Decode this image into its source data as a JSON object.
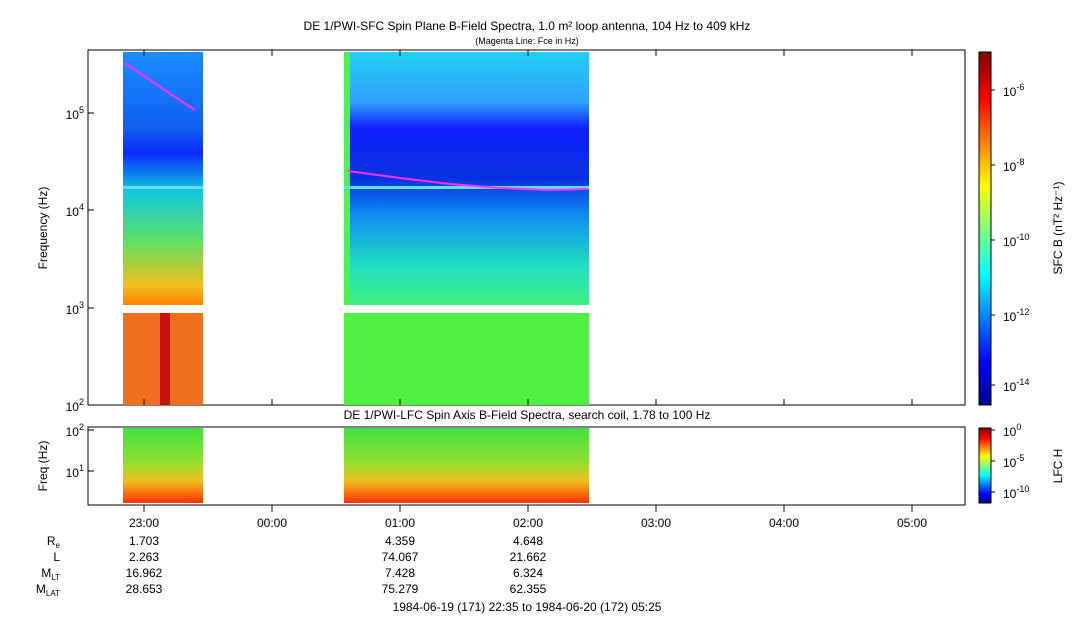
{
  "title": "DE 1/PWI-SFC  Spin Plane B-Field Spectra, 1.0 m² loop antenna, 104 Hz to 409 kHz",
  "subtitle": "(Magenta Line: Fce in Hz)",
  "upper_panel": {
    "y_label": "Frequency (Hz)",
    "y_ticks": [
      {
        "base": "10",
        "exp": "2"
      },
      {
        "base": "10",
        "exp": "3"
      },
      {
        "base": "10",
        "exp": "4"
      },
      {
        "base": "10",
        "exp": "5"
      }
    ],
    "colorbar_label": "SFC B (nT² Hz⁻¹)",
    "colorbar_ticks": [
      {
        "base": "10",
        "exp": "-6"
      },
      {
        "base": "10",
        "exp": "-8"
      },
      {
        "base": "10",
        "exp": "-10"
      },
      {
        "base": "10",
        "exp": "-12"
      },
      {
        "base": "10",
        "exp": "-14"
      }
    ]
  },
  "lower_panel": {
    "title": "DE 1/PWI-LFC  Spin Axis B-Field Spectra, search coil, 1.78 to 100 Hz",
    "y_label": "Freq (Hz)",
    "y_ticks": [
      {
        "base": "10",
        "exp": "2"
      },
      {
        "base": "10",
        "exp": "1"
      }
    ],
    "colorbar_label": "LFC H",
    "colorbar_ticks": [
      {
        "base": "10",
        "exp": "0"
      },
      {
        "base": "10",
        "exp": "-5"
      },
      {
        "base": "10",
        "exp": "-10"
      }
    ]
  },
  "x_ticks": [
    "23:00",
    "00:00",
    "01:00",
    "02:00",
    "03:00",
    "04:00",
    "05:00"
  ],
  "ephemeris": {
    "rows": [
      {
        "label": "R",
        "sub": "e",
        "values": [
          "1.703",
          "4.359",
          "4.648"
        ]
      },
      {
        "label": "L",
        "values": [
          "2.263",
          "74.067",
          "21.662"
        ]
      },
      {
        "label": "M",
        "sub": "LT",
        "values": [
          "16.962",
          "7.428",
          "6.324"
        ]
      },
      {
        "label": "M",
        "sub": "LAT",
        "values": [
          "28.653",
          "75.279",
          "62.355"
        ]
      }
    ]
  },
  "time_range": "1984-06-19 (171) 22:35 to 1984-06-20 (172) 05:25"
}
